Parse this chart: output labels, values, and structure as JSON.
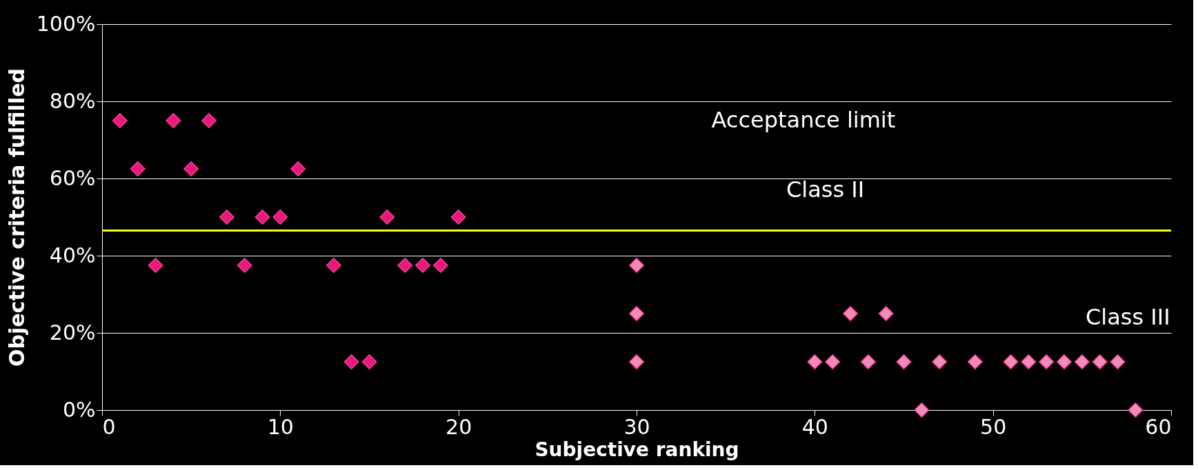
{
  "chart_data": {
    "type": "scatter",
    "xlabel": "Subjective ranking",
    "ylabel": "Objective criteria fulfilled",
    "series": [
      {
        "color": "#e8197a",
        "x": [
          1,
          2,
          3,
          4,
          5,
          6,
          7,
          8,
          9,
          10,
          11,
          13,
          14,
          15,
          16,
          17,
          18,
          19,
          20
        ],
        "values": [
          75,
          62.5,
          37.5,
          75,
          62.5,
          75,
          50,
          37.5,
          50,
          50,
          62.5,
          37.5,
          12.5,
          12.5,
          50,
          37.5,
          37.5,
          37.5,
          50
        ]
      },
      {
        "color": "#f08cb9",
        "x": [
          30,
          30,
          30
        ],
        "values": [
          37.5,
          25,
          12.5
        ]
      },
      {
        "color": "#f08cb9",
        "x": [
          40,
          41,
          42,
          43,
          44,
          45,
          46,
          47,
          49,
          51,
          52,
          53,
          54,
          55,
          56,
          57,
          58
        ],
        "values": [
          12.5,
          12.5,
          25,
          12.5,
          25,
          12.5,
          0,
          12.5,
          12.5,
          12.5,
          12.5,
          12.5,
          12.5,
          12.5,
          12.5,
          12.5,
          0
        ]
      }
    ],
    "xlim": [
      0,
      60
    ],
    "xticks": [
      0,
      10,
      20,
      30,
      40,
      50,
      60
    ],
    "ylim": [
      0,
      100
    ],
    "yticks": [
      {
        "value": 0,
        "label": "0%"
      },
      {
        "value": 20,
        "label": "20%"
      },
      {
        "value": 40,
        "label": "40%"
      },
      {
        "value": 60,
        "label": "60%"
      },
      {
        "value": 80,
        "label": "80%"
      },
      {
        "value": 100,
        "label": "100%"
      }
    ],
    "ref_lines": [
      {
        "axis": "y",
        "value": 46.5,
        "color": "#ffff00"
      }
    ],
    "annotations": [
      "Acceptance limit",
      "Class II",
      "Class III"
    ],
    "grid": "y",
    "marker": "diamond"
  }
}
